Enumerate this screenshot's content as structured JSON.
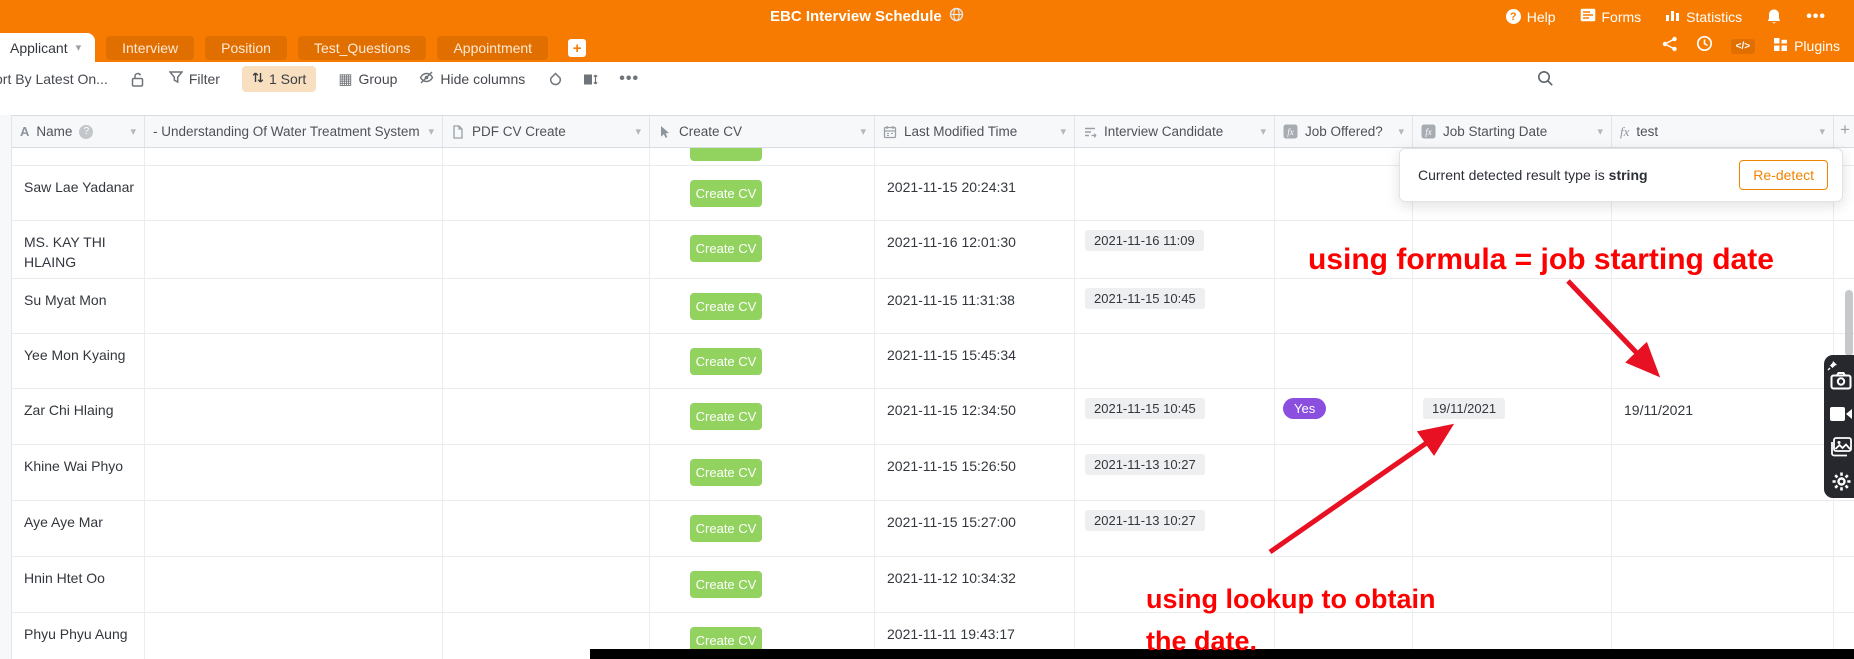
{
  "topbar": {
    "title": "EBC Interview Schedule",
    "help": "Help",
    "forms": "Forms",
    "statistics": "Statistics"
  },
  "tabs": {
    "items": [
      "Applicant",
      "Interview",
      "Position",
      "Test_Questions",
      "Appointment"
    ],
    "plugins": "Plugins"
  },
  "toolbar": {
    "view_name": "ort By Latest On...",
    "filter": "Filter",
    "sort": "1 Sort",
    "group": "Group",
    "hide_columns": "Hide columns"
  },
  "table": {
    "columns": [
      {
        "label": "Name",
        "icon": "text-field-icon",
        "has_info": true
      },
      {
        "label": "- Understanding Of Water Treatment System",
        "icon": ""
      },
      {
        "label": "PDF CV Create",
        "icon": "document-icon"
      },
      {
        "label": "Create CV",
        "icon": "cursor-icon"
      },
      {
        "label": "Last Modified Time",
        "icon": "calendar-icon"
      },
      {
        "label": "Interview Candidate",
        "icon": "lookup-icon"
      },
      {
        "label": "Job Offered?",
        "icon": "formula-box-icon"
      },
      {
        "label": "Job Starting Date",
        "icon": "formula-box-icon"
      },
      {
        "label": "test",
        "icon": "formula-icon"
      }
    ],
    "create_cv_button": "Create CV",
    "add_column": "+",
    "rows": [
      {
        "name": "Saw Lae Yadanar",
        "last_modified_time": "2021-11-15 20:24:31",
        "interview_candidate": "",
        "job_offered": "",
        "job_starting_date": "",
        "test": ""
      },
      {
        "name": "MS. KAY THI HLAING",
        "last_modified_time": "2021-11-16 12:01:30",
        "interview_candidate": "2021-11-16 11:09",
        "job_offered": "",
        "job_starting_date": "",
        "test": ""
      },
      {
        "name": "Su Myat Mon",
        "last_modified_time": "2021-11-15 11:31:38",
        "interview_candidate": "2021-11-15 10:45",
        "job_offered": "",
        "job_starting_date": "",
        "test": ""
      },
      {
        "name": "Yee Mon Kyaing",
        "last_modified_time": "2021-11-15 15:45:34",
        "interview_candidate": "",
        "job_offered": "",
        "job_starting_date": "",
        "test": ""
      },
      {
        "name": "Zar Chi Hlaing",
        "last_modified_time": "2021-11-15 12:34:50",
        "interview_candidate": "2021-11-15 10:45",
        "job_offered": "Yes",
        "job_starting_date": "19/11/2021",
        "test": "19/11/2021"
      },
      {
        "name": "Khine Wai Phyo",
        "last_modified_time": "2021-11-15 15:26:50",
        "interview_candidate": "2021-11-13 10:27",
        "job_offered": "",
        "job_starting_date": "",
        "test": ""
      },
      {
        "name": "Aye Aye Mar",
        "last_modified_time": "2021-11-15 15:27:00",
        "interview_candidate": "2021-11-13 10:27",
        "job_offered": "",
        "job_starting_date": "",
        "test": ""
      },
      {
        "name": "Hnin Htet Oo",
        "last_modified_time": "2021-11-12 10:34:32",
        "interview_candidate": "",
        "job_offered": "",
        "job_starting_date": "",
        "test": ""
      },
      {
        "name": "Phyu Phyu Aung",
        "last_modified_time": "2021-11-11 19:43:17",
        "interview_candidate": "",
        "job_offered": "",
        "job_starting_date": "",
        "test": ""
      }
    ]
  },
  "popup": {
    "message": "Current detected result type is ",
    "type_value": "string",
    "button": "Re-detect"
  },
  "annotations": {
    "formula_note": "using formula = job starting date",
    "lookup_note_line1": "using lookup to obtain",
    "lookup_note_line2": "the date."
  },
  "colors": {
    "accent_orange": "#F77B00",
    "button_green": "#92D35F",
    "badge_purple": "#8B4FE0",
    "annotation_red": "#FE0000"
  }
}
